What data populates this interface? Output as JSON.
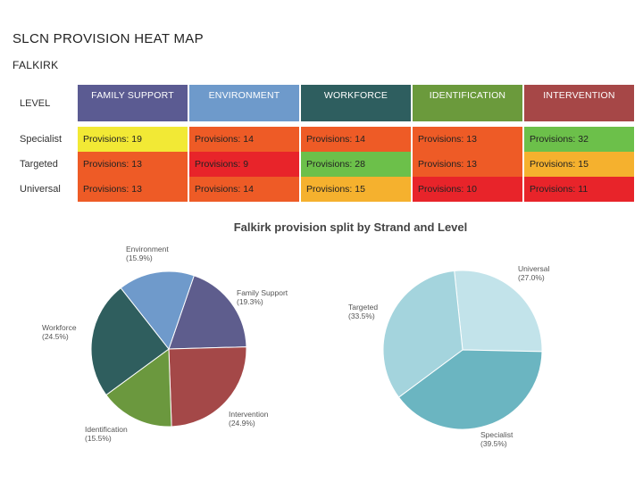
{
  "page": {
    "title": "SLCN PROVISION HEAT MAP",
    "subtitle": "FALKIRK"
  },
  "heatmap": {
    "corner_label": "LEVEL",
    "columns": [
      {
        "label": "FAMILY SUPPORT",
        "color": "#5b5b92"
      },
      {
        "label": "ENVIRONMENT",
        "color": "#6e9acb"
      },
      {
        "label": "WORKFORCE",
        "color": "#2e5e5f"
      },
      {
        "label": "IDENTIFICATION",
        "color": "#6b9a3c"
      },
      {
        "label": "INTERVENTION",
        "color": "#a64747"
      }
    ],
    "rows": [
      {
        "label": "Specialist",
        "cells": [
          {
            "text": "Provisions: 19",
            "color": "#f2e935"
          },
          {
            "text": "Provisions: 14",
            "color": "#ee5b26"
          },
          {
            "text": "Provisions: 14",
            "color": "#ee5b26"
          },
          {
            "text": "Provisions: 13",
            "color": "#ee5b26"
          },
          {
            "text": "Provisions: 32",
            "color": "#6cc04a"
          }
        ]
      },
      {
        "label": "Targeted",
        "cells": [
          {
            "text": "Provisions: 13",
            "color": "#ee5b26"
          },
          {
            "text": "Provisions: 9",
            "color": "#e8242a"
          },
          {
            "text": "Provisions: 28",
            "color": "#6cc04a"
          },
          {
            "text": "Provisions: 13",
            "color": "#ee5b26"
          },
          {
            "text": "Provisions: 15",
            "color": "#f5b12e"
          }
        ]
      },
      {
        "label": "Universal",
        "cells": [
          {
            "text": "Provisions: 13",
            "color": "#ee5b26"
          },
          {
            "text": "Provisions: 14",
            "color": "#ee5b26"
          },
          {
            "text": "Provisions: 15",
            "color": "#f5b12e"
          },
          {
            "text": "Provisions: 10",
            "color": "#e8242a"
          },
          {
            "text": "Provisions: 11",
            "color": "#e8242a"
          }
        ]
      }
    ]
  },
  "chart_data": [
    {
      "type": "pie",
      "title": "Falkirk provision split by Strand and Level",
      "slices": [
        {
          "name": "Family Support",
          "pct_label": "(19.3%)",
          "value": 19.3,
          "color": "#5e5d8d"
        },
        {
          "name": "Intervention",
          "pct_label": "(24.9%)",
          "value": 24.9,
          "color": "#a44848"
        },
        {
          "name": "Identification",
          "pct_label": "(15.5%)",
          "value": 15.5,
          "color": "#6b983e"
        },
        {
          "name": "Workforce",
          "pct_label": "(24.5%)",
          "value": 24.5,
          "color": "#2f5e5e"
        },
        {
          "name": "Environment",
          "pct_label": "(15.9%)",
          "value": 15.9,
          "color": "#6f9acb"
        }
      ]
    },
    {
      "type": "pie",
      "title": "Falkirk provision split by Strand and Level",
      "slices": [
        {
          "name": "Universal",
          "pct_label": "(27.0%)",
          "value": 27.0,
          "color": "#c2e3ea"
        },
        {
          "name": "Specialist",
          "pct_label": "(39.5%)",
          "value": 39.5,
          "color": "#6bb5c1"
        },
        {
          "name": "Targeted",
          "pct_label": "(33.5%)",
          "value": 33.5,
          "color": "#a4d4dd"
        }
      ]
    }
  ]
}
